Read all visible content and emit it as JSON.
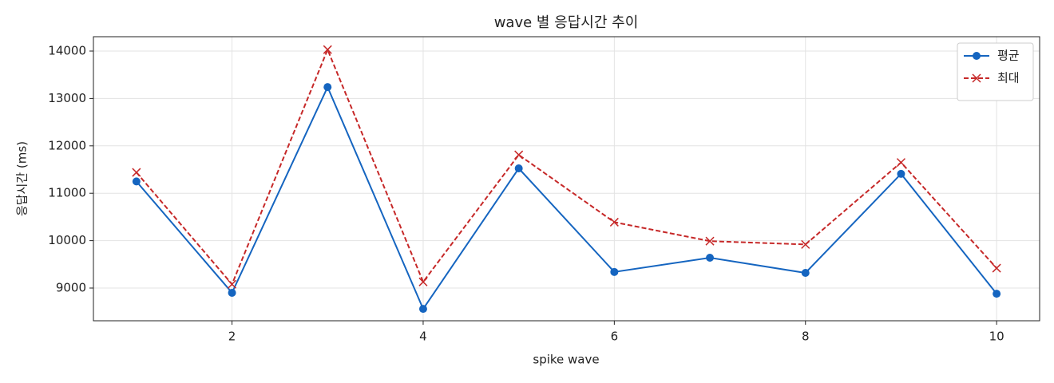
{
  "chart_data": {
    "type": "line",
    "title": "wave 별 응답시간 추이",
    "x_label": "spike wave",
    "y_label": "응답시간 (ms)",
    "x": [
      1,
      2,
      3,
      4,
      5,
      6,
      7,
      8,
      9,
      10
    ],
    "series": [
      {
        "name": "평균",
        "color": "#1565c0",
        "marker": "o",
        "linestyle": "solid",
        "values": [
          11250,
          8900,
          13240,
          8560,
          11525,
          9340,
          9640,
          9320,
          11410,
          8880
        ]
      },
      {
        "name": "최대",
        "color": "#c62828",
        "marker": "x",
        "linestyle": "dashed",
        "values": [
          11440,
          9080,
          14030,
          9130,
          11810,
          10390,
          9990,
          9920,
          11650,
          9420
        ]
      }
    ],
    "xlim": [
      0.55,
      10.45
    ],
    "ylim": [
      8310,
      14303
    ],
    "xticks": [
      2,
      4,
      6,
      8,
      10
    ],
    "yticks": [
      9000,
      10000,
      11000,
      12000,
      13000,
      14000
    ],
    "grid": true,
    "legend": "upper right"
  }
}
